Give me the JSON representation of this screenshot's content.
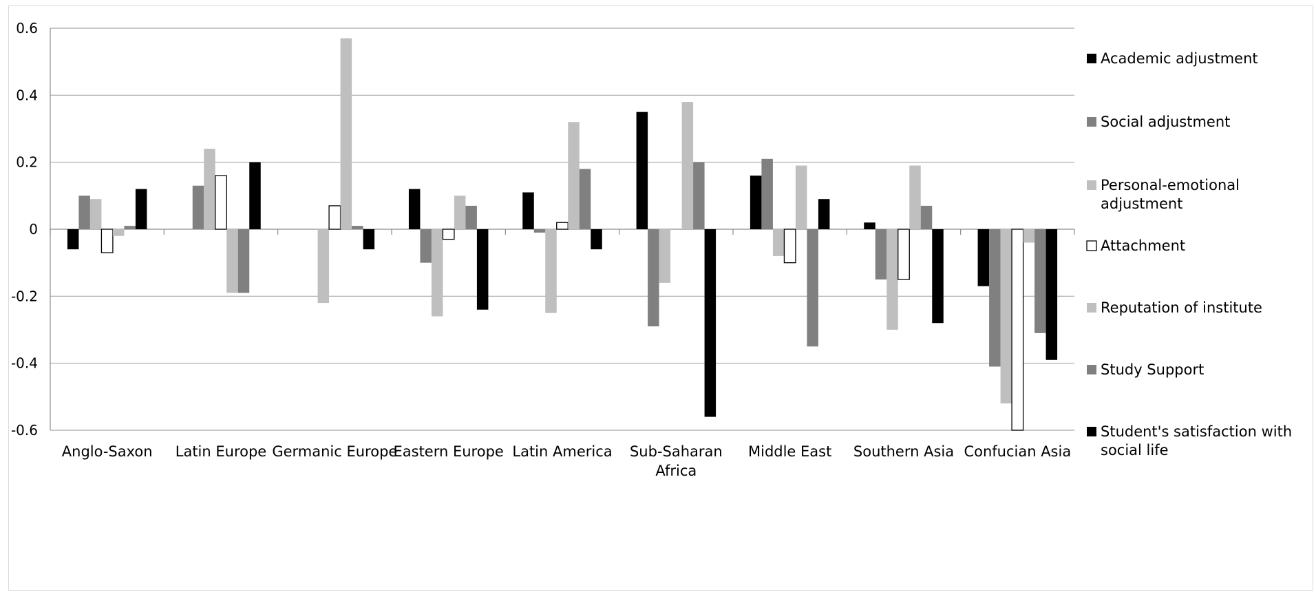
{
  "chart_data": {
    "type": "bar",
    "categories": [
      "Anglo-Saxon",
      "Latin Europe",
      "Germanic Europe",
      "Eastern Europe",
      "Latin America",
      "Sub-Saharan Africa",
      "Middle East",
      "Southern Asia",
      "Confucian Asia"
    ],
    "category_lines": [
      [
        "Anglo-Saxon"
      ],
      [
        "Latin Europe"
      ],
      [
        "Germanic Europe"
      ],
      [
        "Eastern Europe"
      ],
      [
        "Latin America"
      ],
      [
        "Sub-Saharan",
        "Africa"
      ],
      [
        "Middle East"
      ],
      [
        "Southern Asia"
      ],
      [
        "Confucian Asia"
      ]
    ],
    "series": [
      {
        "name": "Academic adjustment",
        "legend_lines": [
          "Academic adjustment"
        ],
        "color": "#000000",
        "outline": false,
        "values": [
          -0.06,
          0,
          0,
          0.12,
          0.11,
          0.35,
          0.16,
          0.02,
          -0.17
        ]
      },
      {
        "name": "Social adjustment",
        "legend_lines": [
          "Social adjustment"
        ],
        "color": "#808080",
        "outline": false,
        "values": [
          0.1,
          0.13,
          0,
          -0.1,
          -0.01,
          -0.29,
          0.21,
          -0.15,
          -0.41
        ]
      },
      {
        "name": "Personal-emotional adjustment",
        "legend_lines": [
          "Personal-emotional",
          "adjustment"
        ],
        "color": "#bfbfbf",
        "outline": false,
        "values": [
          0.09,
          0.24,
          -0.22,
          -0.26,
          -0.25,
          -0.16,
          -0.08,
          -0.3,
          -0.52
        ]
      },
      {
        "name": "Attachment",
        "legend_lines": [
          "Attachment"
        ],
        "color": "#ffffff",
        "outline": true,
        "values": [
          -0.07,
          0.16,
          0.07,
          -0.03,
          0.02,
          0,
          -0.1,
          -0.15,
          -0.6
        ]
      },
      {
        "name": "Reputation of institute",
        "legend_lines": [
          "Reputation of institute"
        ],
        "color": "#bfbfbf",
        "outline": false,
        "values": [
          -0.02,
          -0.19,
          0.57,
          0.1,
          0.32,
          0.38,
          0.19,
          0.19,
          -0.04
        ]
      },
      {
        "name": "Study Support",
        "legend_lines": [
          "Study Support"
        ],
        "color": "#808080",
        "outline": false,
        "values": [
          0.01,
          -0.19,
          0.01,
          0.07,
          0.18,
          0.2,
          -0.35,
          0.07,
          -0.31
        ]
      },
      {
        "name": "Student's satisfaction with social life",
        "legend_lines": [
          "Student's satisfaction with",
          "social life"
        ],
        "color": "#000000",
        "outline": false,
        "values": [
          0.12,
          0.2,
          -0.06,
          -0.24,
          -0.06,
          -0.56,
          0.09,
          -0.28,
          -0.39
        ]
      }
    ],
    "yticks": [
      "-0.6",
      "-0.4",
      "-0.2",
      "0",
      "0.2",
      "0.4",
      "0.6"
    ],
    "ylim": [
      -0.6,
      0.6
    ],
    "grid": true,
    "legend_position": "right",
    "title": "",
    "xlabel": "",
    "ylabel": ""
  }
}
